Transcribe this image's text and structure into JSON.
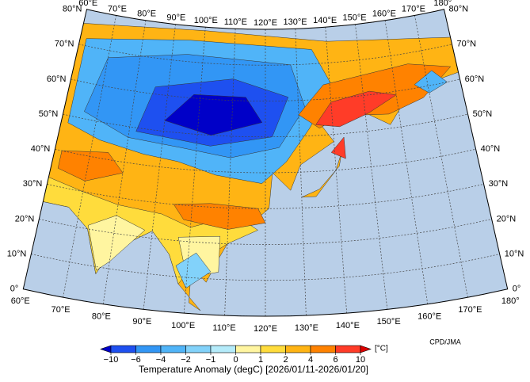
{
  "map": {
    "title": "Temperature Anomaly (degC) [2026/01/11-2026/01/20]",
    "credit": "CPD/JMA",
    "longitudes": [
      {
        "value": 60,
        "label": "60°E"
      },
      {
        "value": 70,
        "label": "70°E"
      },
      {
        "value": 80,
        "label": "80°E"
      },
      {
        "value": 90,
        "label": "90°E"
      },
      {
        "value": 100,
        "label": "100°E"
      },
      {
        "value": 110,
        "label": "110°E"
      },
      {
        "value": 120,
        "label": "120°E"
      },
      {
        "value": 130,
        "label": "130°E"
      },
      {
        "value": 140,
        "label": "140°E"
      },
      {
        "value": 150,
        "label": "150°E"
      },
      {
        "value": 160,
        "label": "160°E"
      },
      {
        "value": 170,
        "label": "170°E"
      },
      {
        "value": 180,
        "label": "180°"
      }
    ],
    "latitudes": [
      {
        "value": 0,
        "label": "0°"
      },
      {
        "value": 10,
        "label": "10°N"
      },
      {
        "value": 20,
        "label": "20°N"
      },
      {
        "value": 30,
        "label": "30°N"
      },
      {
        "value": 40,
        "label": "40°N"
      },
      {
        "value": 50,
        "label": "50°N"
      },
      {
        "value": 60,
        "label": "60°N"
      },
      {
        "value": 70,
        "label": "70°N"
      },
      {
        "value": 80,
        "label": "80°N"
      }
    ],
    "colorbar": {
      "unit": "[°C]",
      "levels": [
        {
          "value": -10,
          "label": "−10"
        },
        {
          "value": -6,
          "label": "−6"
        },
        {
          "value": -4,
          "label": "−4"
        },
        {
          "value": -2,
          "label": "−2"
        },
        {
          "value": -1,
          "label": "−1"
        },
        0,
        1,
        2,
        4,
        6,
        10
      ],
      "colors": [
        "#0000c8",
        "#1e50f0",
        "#3296f5",
        "#50b4f8",
        "#82d2fa",
        "#b4ebfa",
        "#fff5a0",
        "#ffdc3c",
        "#ffb414",
        "#ff8200",
        "#ff3c28",
        "#dc0000"
      ]
    }
  }
}
